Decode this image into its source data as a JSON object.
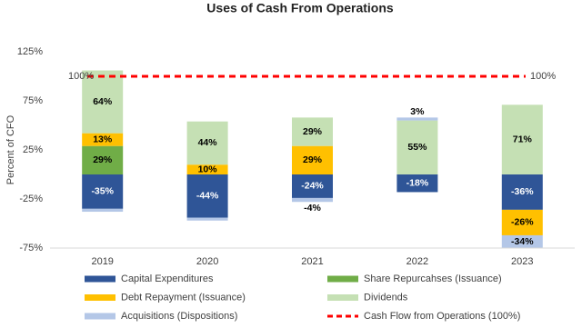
{
  "chart_data": {
    "type": "stacked_bar",
    "title": "Uses of Cash From Operations",
    "y_label": "Percent of CFO",
    "categories": [
      "2019",
      "2020",
      "2021",
      "2022",
      "2023"
    ],
    "series": [
      {
        "name": "Capital Expenditures",
        "color": "#2f5597",
        "values": [
          -35,
          -44,
          -24,
          -18,
          -36
        ],
        "value_labels": [
          "-35%",
          "-44%",
          "-24%",
          "-18%",
          "-36%"
        ]
      },
      {
        "name": "Share Repurcahses (Issuance)",
        "color": "#70ad47",
        "values": [
          29,
          null,
          null,
          null,
          null
        ],
        "value_labels": [
          "29%",
          null,
          null,
          null,
          null
        ]
      },
      {
        "name": "Debt Repayment (Issuance)",
        "color": "#ffc000",
        "values": [
          13,
          10,
          29,
          null,
          -26
        ],
        "value_labels": [
          "13%",
          "10%",
          "29%",
          null,
          "-26%"
        ]
      },
      {
        "name": "Dividends",
        "color": "#c5e0b4",
        "values": [
          64,
          44,
          29,
          55,
          71
        ],
        "value_labels": [
          "64%",
          "44%",
          "29%",
          "55%",
          "71%"
        ]
      },
      {
        "name": "Acquisitions (Dispositions)",
        "color": "#b4c7e7",
        "values": [
          -3,
          -3,
          -4,
          3,
          -34
        ],
        "value_labels": [
          null,
          null,
          "-4%",
          "3%",
          "-34%"
        ]
      }
    ],
    "reference": {
      "name": "Cash Flow from Operations (100%)",
      "value": 100,
      "label": "100%",
      "color": "#ff0000"
    },
    "ylim": [
      -75,
      125
    ],
    "yticks": [
      {
        "value": -75,
        "label": "-75%"
      },
      {
        "value": -25,
        "label": "-25%"
      },
      {
        "value": 25,
        "label": "25%"
      },
      {
        "value": 75,
        "label": "75%"
      },
      {
        "value": 125,
        "label": "125%"
      }
    ],
    "grid": false
  }
}
